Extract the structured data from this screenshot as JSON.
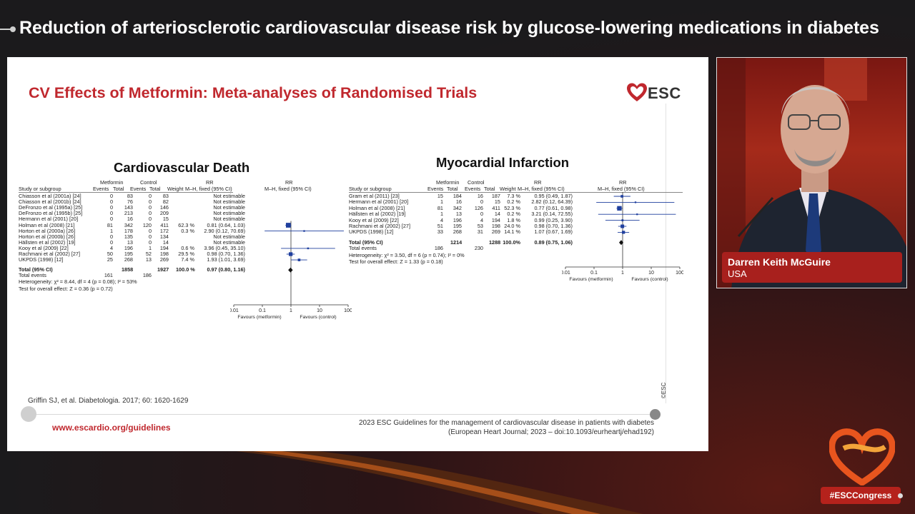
{
  "headline": "Reduction of arteriosclerotic cardiovascular disease risk by glucose-lowering medications in diabetes",
  "slide": {
    "title": "CV Effects of Metformin: Meta-analyses of Randomised Trials",
    "logo_text": "ESC",
    "citation": "Griffin SJ, et al. Diabetologia. 2017; 60: 1620-1629",
    "footer_url": "www.escardio.org/guidelines",
    "footer_ref_line1": "2023 ESC Guidelines for the management of cardiovascular disease in patients with diabetes",
    "footer_ref_line2": "(European Heart Journal; 2023 – doi:10.1093/eurheartj/ehad192)",
    "copyright": "©ESC"
  },
  "cv_death": {
    "title": "Cardiovascular Death",
    "headers": {
      "study": "Study or subgroup",
      "group1": "Metformin",
      "group2": "Control",
      "events": "Events",
      "total": "Total",
      "weight": "Weight",
      "rr": "RR",
      "rr_method": "M–H, fixed (95% CI)"
    },
    "rows": [
      {
        "study": "Chiasson et al (2001a) [24]",
        "e1": "0",
        "t1": "83",
        "e2": "0",
        "t2": "83",
        "weight": "",
        "rr": "Not estimable"
      },
      {
        "study": "Chiasson et al (2001b) [24]",
        "e1": "0",
        "t1": "76",
        "e2": "0",
        "t2": "82",
        "weight": "",
        "rr": "Not estimable"
      },
      {
        "study": "DeFronzo et al (1995a) [25]",
        "e1": "0",
        "t1": "143",
        "e2": "0",
        "t2": "146",
        "weight": "",
        "rr": "Not estimable"
      },
      {
        "study": "DeFronzo et al (1995b) [25]",
        "e1": "0",
        "t1": "213",
        "e2": "0",
        "t2": "209",
        "weight": "",
        "rr": "Not estimable"
      },
      {
        "study": "Hermann et al (2001) [20]",
        "e1": "0",
        "t1": "16",
        "e2": "0",
        "t2": "15",
        "weight": "",
        "rr": "Not estimable"
      },
      {
        "study": "Holman et al (2008) [21]",
        "e1": "81",
        "t1": "342",
        "e2": "120",
        "t2": "411",
        "weight": "62.3 %",
        "rr": "0.81 (0.64, 1.03)"
      },
      {
        "study": "Horton et al (2000a) [26]",
        "e1": "1",
        "t1": "178",
        "e2": "0",
        "t2": "172",
        "weight": "0.3 %",
        "rr": "2.90 (0.12, 70.69)"
      },
      {
        "study": "Horton et al (2000b) [26]",
        "e1": "0",
        "t1": "135",
        "e2": "0",
        "t2": "134",
        "weight": "",
        "rr": "Not estimable"
      },
      {
        "study": "Hällsten et al (2002) [19]",
        "e1": "0",
        "t1": "13",
        "e2": "0",
        "t2": "14",
        "weight": "",
        "rr": "Not estimable"
      },
      {
        "study": "Kooy et al (2009) [22]",
        "e1": "4",
        "t1": "196",
        "e2": "1",
        "t2": "194",
        "weight": "0.6 %",
        "rr": "3.96 (0.45, 35.10)"
      },
      {
        "study": "Rachmani et al (2002) [27]",
        "e1": "50",
        "t1": "195",
        "e2": "52",
        "t2": "198",
        "weight": "29.5 %",
        "rr": "0.98 (0.70, 1.36)"
      },
      {
        "study": "UKPDS (1998) [12]",
        "e1": "25",
        "t1": "268",
        "e2": "13",
        "t2": "269",
        "weight": "7.4 %",
        "rr": "1.93 (1.01, 3.69)"
      }
    ],
    "total": {
      "study": "Total (95% CI)",
      "t1": "1858",
      "t2": "1927",
      "weight": "100.0 %",
      "rr": "0.97 (0.80, 1.16)"
    },
    "total_events": {
      "label": "Total events",
      "e1": "161",
      "e2": "186"
    },
    "heterogeneity": "Heterogeneity: χ² = 8.44, df = 4 (p = 0.08); I² = 53%",
    "overall_effect": "Test for overall effect: Z = 0.36 (p = 0.72)",
    "axis": {
      "ticks": [
        "0.01",
        "0.1",
        "1",
        "10",
        "100"
      ],
      "left_label": "Favours (metformin)",
      "right_label": "Favours (control)"
    }
  },
  "mi": {
    "title": "Myocardial Infarction",
    "headers": {
      "study": "Study or subgroup",
      "group1": "Metformin",
      "group2": "Control",
      "events": "Events",
      "total": "Total",
      "weight": "Weight",
      "rr": "RR",
      "rr_method": "M–H, fixed (95% CI)"
    },
    "rows": [
      {
        "study": "Gram et al (2011) [23]",
        "e1": "15",
        "t1": "184",
        "e2": "16",
        "t2": "187",
        "weight": "7.3 %",
        "rr": "0.95 (0.49, 1.87)"
      },
      {
        "study": "Hermann et al (2001) [20]",
        "e1": "1",
        "t1": "16",
        "e2": "0",
        "t2": "15",
        "weight": "0.2 %",
        "rr": "2.82 (0.12, 64.39)"
      },
      {
        "study": "Holman et al (2008) [21]",
        "e1": "81",
        "t1": "342",
        "e2": "126",
        "t2": "411",
        "weight": "52.3 %",
        "rr": "0.77 (0.61, 0.98)"
      },
      {
        "study": "Hällsten et al (2002) [19]",
        "e1": "1",
        "t1": "13",
        "e2": "0",
        "t2": "14",
        "weight": "0.2 %",
        "rr": "3.21 (0.14, 72.55)"
      },
      {
        "study": "Kooy et al (2009) [22]",
        "e1": "4",
        "t1": "196",
        "e2": "4",
        "t2": "194",
        "weight": "1.8 %",
        "rr": "0.99 (0.25, 3.90)"
      },
      {
        "study": "Rachmani et al (2002) [27]",
        "e1": "51",
        "t1": "195",
        "e2": "53",
        "t2": "198",
        "weight": "24.0 %",
        "rr": "0.98 (0.70, 1.36)"
      },
      {
        "study": "UKPDS (1998) [12]",
        "e1": "33",
        "t1": "268",
        "e2": "31",
        "t2": "269",
        "weight": "14.1 %",
        "rr": "1.07 (0.67, 1.69)"
      }
    ],
    "total": {
      "study": "Total (95% CI)",
      "t1": "1214",
      "t2": "1288",
      "weight": "100.0%",
      "rr": "0.89 (0.75, 1.06)"
    },
    "total_events": {
      "label": "Total events",
      "e1": "186",
      "e2": "230"
    },
    "heterogeneity": "Heterogeneity: χ² = 3.50, df = 6 (p = 0.74); I² = 0%",
    "overall_effect": "Test for overall effect: Z = 1.33 (p = 0.18)",
    "axis": {
      "ticks": [
        "0.01",
        "0.1",
        "1",
        "10",
        "100"
      ],
      "left_label": "Favours (metformin)",
      "right_label": "Favours (control)"
    }
  },
  "chart_data": [
    {
      "type": "forest",
      "title": "Cardiovascular Death",
      "scale": "log",
      "xlim": [
        0.01,
        100
      ],
      "points": [
        {
          "study": "Holman et al (2008) [21]",
          "rr": 0.81,
          "lo": 0.64,
          "hi": 1.03,
          "weight": 62.3
        },
        {
          "study": "Horton et al (2000a) [26]",
          "rr": 2.9,
          "lo": 0.12,
          "hi": 70.69,
          "weight": 0.3
        },
        {
          "study": "Kooy et al (2009) [22]",
          "rr": 3.96,
          "lo": 0.45,
          "hi": 35.1,
          "weight": 0.6
        },
        {
          "study": "Rachmani et al (2002) [27]",
          "rr": 0.98,
          "lo": 0.7,
          "hi": 1.36,
          "weight": 29.5
        },
        {
          "study": "UKPDS (1998) [12]",
          "rr": 1.93,
          "lo": 1.01,
          "hi": 3.69,
          "weight": 7.4
        }
      ],
      "pooled": {
        "rr": 0.97,
        "lo": 0.8,
        "hi": 1.16
      }
    },
    {
      "type": "forest",
      "title": "Myocardial Infarction",
      "scale": "log",
      "xlim": [
        0.01,
        100
      ],
      "points": [
        {
          "study": "Gram et al (2011) [23]",
          "rr": 0.95,
          "lo": 0.49,
          "hi": 1.87,
          "weight": 7.3
        },
        {
          "study": "Hermann et al (2001) [20]",
          "rr": 2.82,
          "lo": 0.12,
          "hi": 64.39,
          "weight": 0.2
        },
        {
          "study": "Holman et al (2008) [21]",
          "rr": 0.77,
          "lo": 0.61,
          "hi": 0.98,
          "weight": 52.3
        },
        {
          "study": "Hällsten et al (2002) [19]",
          "rr": 3.21,
          "lo": 0.14,
          "hi": 72.55,
          "weight": 0.2
        },
        {
          "study": "Kooy et al (2009) [22]",
          "rr": 0.99,
          "lo": 0.25,
          "hi": 3.9,
          "weight": 1.8
        },
        {
          "study": "Rachmani et al (2002) [27]",
          "rr": 0.98,
          "lo": 0.7,
          "hi": 1.36,
          "weight": 24.0
        },
        {
          "study": "UKPDS (1998) [12]",
          "rr": 1.07,
          "lo": 0.67,
          "hi": 1.69,
          "weight": 14.1
        }
      ],
      "pooled": {
        "rr": 0.89,
        "lo": 0.75,
        "hi": 1.06
      }
    }
  ],
  "speaker": {
    "name": "Darren Keith McGuire",
    "country": "USA"
  },
  "hashtag": "#ESCCongress",
  "colors": {
    "brand_red": "#c0282e",
    "marker_blue": "#1f3f9e",
    "nameplate_red": "#a8201d"
  }
}
